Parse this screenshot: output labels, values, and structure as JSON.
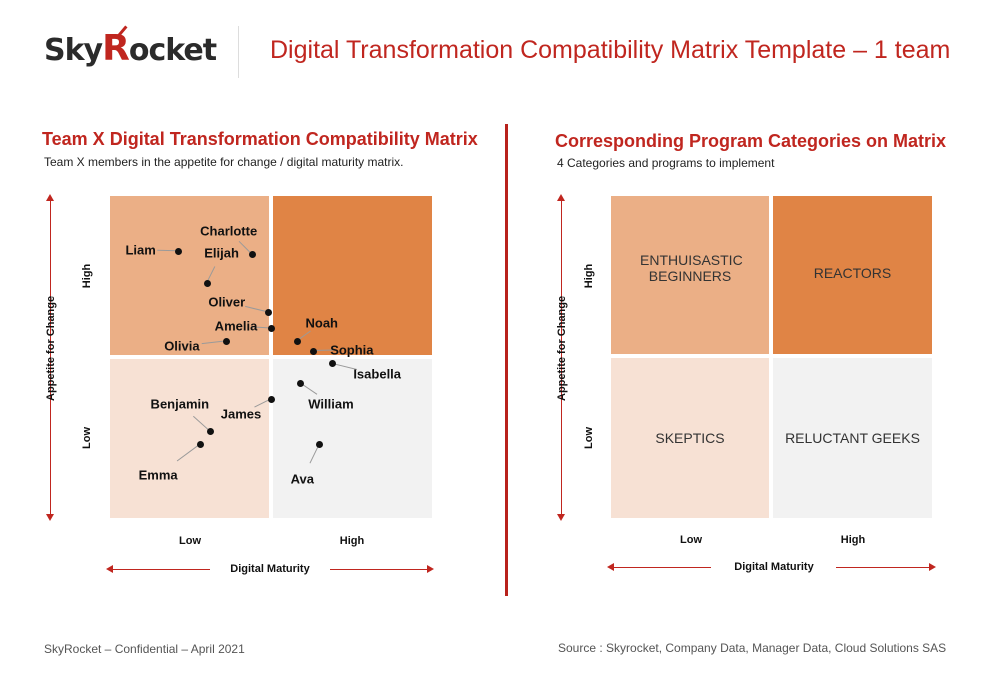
{
  "header": {
    "logo_text": "SkyRocket",
    "title": "Digital Transformation Compatibility Matrix Template – 1 team"
  },
  "left_panel": {
    "title": "Team X Digital Transformation Compatibility Matrix",
    "subtitle": "Team X members in the appetite for change / digital maturity matrix.",
    "y_axis_label": "Appetite for Change",
    "x_axis_label": "Digital Maturity",
    "y_high": "High",
    "y_low": "Low",
    "x_low": "Low",
    "x_high": "High"
  },
  "right_panel": {
    "title": "Corresponding Program Categories on Matrix",
    "subtitle": "4 Categories and programs to implement",
    "y_axis_label": "Appetite for Change",
    "x_axis_label": "Digital Maturity",
    "y_high": "High",
    "y_low": "Low",
    "x_low": "Low",
    "x_high": "High",
    "quadrants": {
      "top_left": "ENTHUISASTIC BEGINNERS",
      "top_right": "REACTORS",
      "bottom_left": "SKEPTICS",
      "bottom_right": "RELUCTANT GEEKS"
    }
  },
  "colors": {
    "accent": "#c0261f",
    "q_top_left": "#ebaf86",
    "q_top_right": "#e08445",
    "q_bottom_left": "#f7e1d4",
    "q_bottom_right": "#f2f2f2"
  },
  "chart_data": {
    "type": "scatter",
    "xlabel": "Digital Maturity",
    "ylabel": "Appetite for Change",
    "xlim": [
      0,
      10
    ],
    "ylim": [
      0,
      10
    ],
    "grid": false,
    "points": [
      {
        "name": "Liam",
        "x": 2.1,
        "y": 8.3
      },
      {
        "name": "Charlotte",
        "x": 4.4,
        "y": 8.2
      },
      {
        "name": "Elijah",
        "x": 3.0,
        "y": 7.3
      },
      {
        "name": "Oliver",
        "x": 4.9,
        "y": 6.4
      },
      {
        "name": "Amelia",
        "x": 5.0,
        "y": 5.9
      },
      {
        "name": "Olivia",
        "x": 3.6,
        "y": 5.5
      },
      {
        "name": "Noah",
        "x": 5.8,
        "y": 5.5
      },
      {
        "name": "Sophia",
        "x": 6.3,
        "y": 5.2
      },
      {
        "name": "Isabella",
        "x": 6.9,
        "y": 4.8
      },
      {
        "name": "William",
        "x": 5.9,
        "y": 4.2
      },
      {
        "name": "James",
        "x": 5.0,
        "y": 3.7
      },
      {
        "name": "Benjamin",
        "x": 3.1,
        "y": 2.7
      },
      {
        "name": "Emma",
        "x": 2.8,
        "y": 2.3
      },
      {
        "name": "Ava",
        "x": 6.5,
        "y": 2.3
      }
    ]
  },
  "footer": {
    "left": "SkyRocket – Confidential – April 2021",
    "right": "Source : Skyrocket, Company Data, Manager Data, Cloud Solutions SAS"
  }
}
